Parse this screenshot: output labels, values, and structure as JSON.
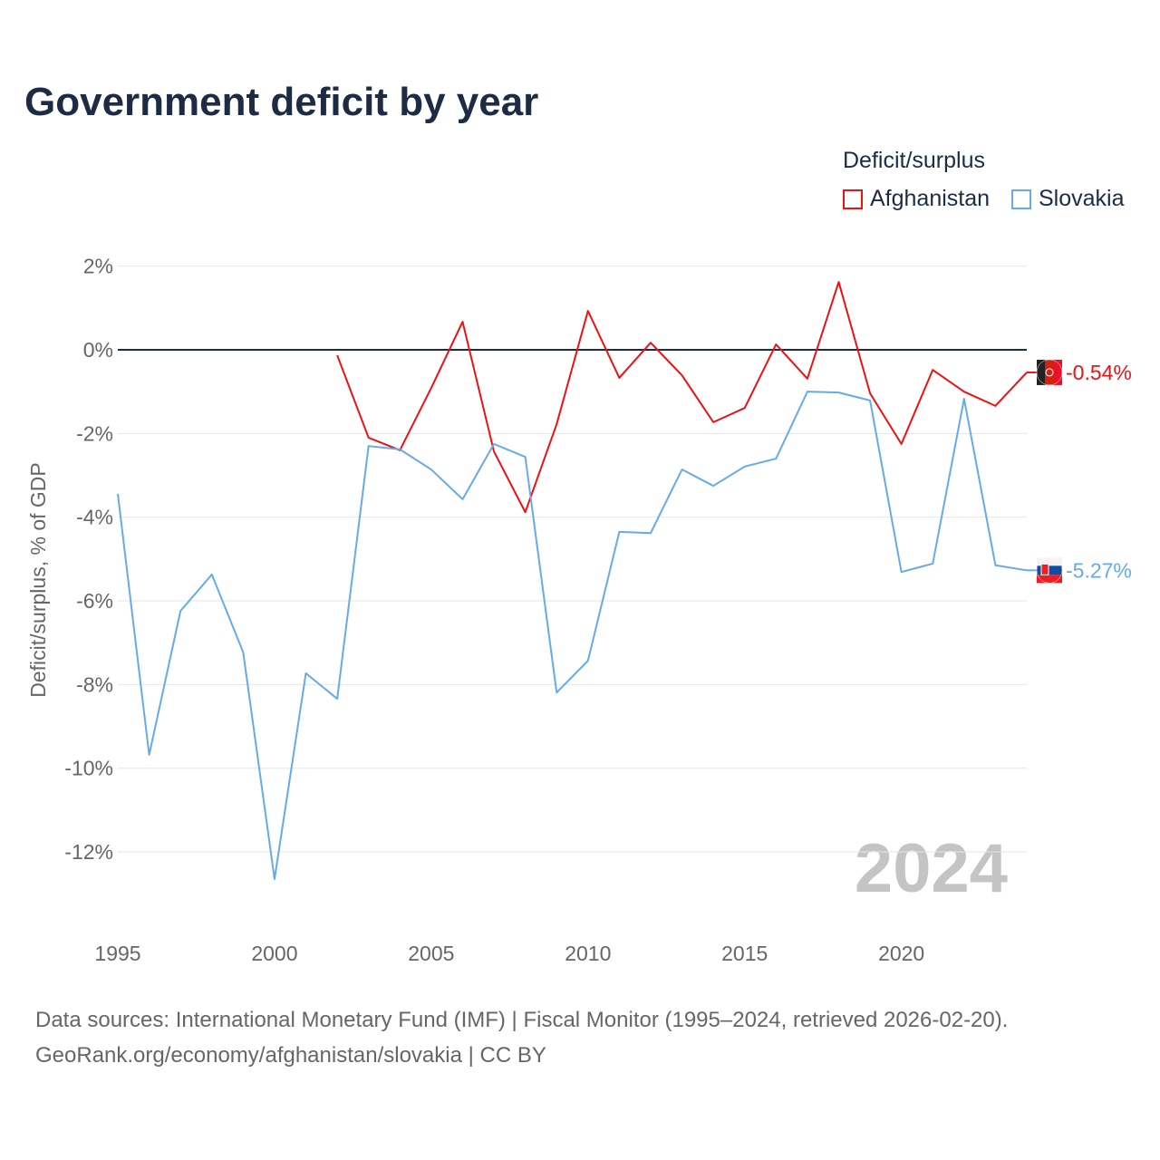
{
  "title": "Government deficit by year",
  "legend": {
    "title": "Deficit/surplus",
    "items": [
      {
        "label": "Afghanistan",
        "color": "#ee1111"
      },
      {
        "label": "Slovakia",
        "color": "#66aaee"
      }
    ]
  },
  "source": {
    "line1": "Data sources: International Monetary Fund (IMF) | Fiscal Monitor (1995–2024, retrieved 2026-02-20).",
    "line2": "GeoRank.org/economy/afghanistan/slovakia | CC BY"
  },
  "watermark_year": "2024",
  "chart_data": {
    "type": "line",
    "title": "Government deficit by year",
    "xlabel": "",
    "ylabel": "Deficit/surplus, % of GDP",
    "xlim": [
      1995,
      2024
    ],
    "ylim": [
      -13,
      2
    ],
    "grid": true,
    "legend_position": "top-right",
    "y_ticks": [
      {
        "v": 2,
        "label": "2%"
      },
      {
        "v": 0,
        "label": "0%"
      },
      {
        "v": -2,
        "label": "-2%"
      },
      {
        "v": -4,
        "label": "-4%"
      },
      {
        "v": -6,
        "label": "-6%"
      },
      {
        "v": -8,
        "label": "-8%"
      },
      {
        "v": -10,
        "label": "-10%"
      },
      {
        "v": -12,
        "label": "-12%"
      }
    ],
    "x_ticks": [
      {
        "v": 1995,
        "label": "1995"
      },
      {
        "v": 2000,
        "label": "2000"
      },
      {
        "v": 2005,
        "label": "2005"
      },
      {
        "v": 2010,
        "label": "2010"
      },
      {
        "v": 2015,
        "label": "2015"
      },
      {
        "v": 2020,
        "label": "2020"
      }
    ],
    "series": [
      {
        "name": "Afghanistan",
        "color": "#ee1111",
        "end_label": "-0.54%",
        "x": [
          2002,
          2003,
          2004,
          2005,
          2006,
          2007,
          2008,
          2009,
          2010,
          2011,
          2012,
          2013,
          2014,
          2015,
          2016,
          2017,
          2018,
          2019,
          2020,
          2021,
          2022,
          2023,
          2024
        ],
        "values": [
          -0.13,
          -2.1,
          -2.4,
          -0.91,
          0.67,
          -2.43,
          -3.88,
          -1.78,
          0.93,
          -0.67,
          0.17,
          -0.61,
          -1.73,
          -1.39,
          0.13,
          -0.69,
          1.62,
          -1.04,
          -2.25,
          -0.48,
          -1.0,
          -1.34,
          -0.54
        ]
      },
      {
        "name": "Slovakia",
        "color": "#66aaee",
        "end_label": "-5.27%",
        "x": [
          1995,
          1996,
          1997,
          1998,
          1999,
          2000,
          2001,
          2002,
          2003,
          2004,
          2005,
          2006,
          2007,
          2008,
          2009,
          2010,
          2011,
          2012,
          2013,
          2014,
          2015,
          2016,
          2017,
          2018,
          2019,
          2020,
          2021,
          2022,
          2023,
          2024
        ],
        "values": [
          -3.44,
          -9.68,
          -6.24,
          -5.37,
          -7.23,
          -12.65,
          -7.73,
          -8.34,
          -2.3,
          -2.38,
          -2.86,
          -3.57,
          -2.25,
          -2.56,
          -8.19,
          -7.43,
          -4.35,
          -4.38,
          -2.86,
          -3.25,
          -2.79,
          -2.6,
          -1.0,
          -1.02,
          -1.21,
          -5.31,
          -5.11,
          -1.17,
          -5.15,
          -5.27
        ]
      }
    ]
  }
}
